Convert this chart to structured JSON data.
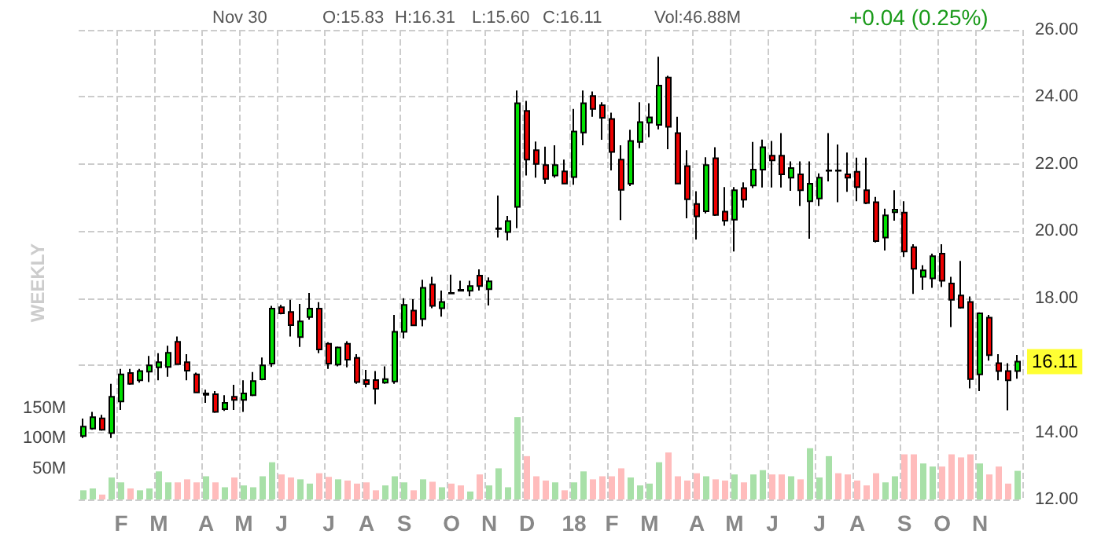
{
  "chart_data": {
    "type": "candlestick",
    "annotations": [
      "Nov 30",
      "O:15.83",
      "H:16.31",
      "L:15.60",
      "C:16.11",
      "Vol:46.88M",
      "+0.04 (0.25%)",
      "WEEKLY",
      {
        "text": "16.11",
        "y": 16.11
      }
    ],
    "categories": [
      null,
      null,
      null,
      null,
      "F",
      null,
      null,
      null,
      "M",
      null,
      null,
      null,
      null,
      "A",
      null,
      null,
      null,
      "M",
      null,
      null,
      null,
      "J",
      null,
      null,
      null,
      null,
      "J",
      null,
      null,
      null,
      "A",
      null,
      null,
      null,
      "S",
      null,
      null,
      null,
      null,
      "O",
      null,
      null,
      null,
      "N",
      null,
      null,
      null,
      "D",
      null,
      null,
      null,
      null,
      "18",
      null,
      null,
      null,
      "F",
      null,
      null,
      null,
      "M",
      null,
      null,
      null,
      null,
      "A",
      null,
      null,
      null,
      "M",
      null,
      null,
      null,
      "J",
      null,
      null,
      null,
      null,
      "J",
      null,
      null,
      null,
      "A",
      null,
      null,
      null,
      null,
      "S",
      null,
      null,
      null,
      "O",
      null,
      null,
      null,
      "N",
      null,
      null,
      null,
      null
    ],
    "ylim": [
      12,
      26
    ],
    "yticks": [
      {
        "value": 12,
        "label": "12.00"
      },
      {
        "value": 14,
        "label": "14.00"
      },
      {
        "value": 16,
        "label": null
      },
      {
        "value": 18,
        "label": "18.00"
      },
      {
        "value": 20,
        "label": "20.00"
      },
      {
        "value": 22,
        "label": "22.00"
      },
      {
        "value": 24,
        "label": "24.00"
      },
      {
        "value": 26,
        "label": "26.00"
      }
    ],
    "y2lim": [
      0,
      770
    ],
    "y2ticks": [
      {
        "value": 50,
        "label": "50M"
      },
      {
        "value": 100,
        "label": "100M"
      },
      {
        "value": 150,
        "label": "150M"
      }
    ],
    "grid": true,
    "series": [
      {
        "ohlc": [
          [
            13.89,
            14.41,
            13.83,
            14.17
          ],
          [
            14.11,
            14.61,
            14.08,
            14.45
          ],
          [
            14.42,
            14.52,
            14.05,
            14.08
          ],
          [
            13.98,
            15.45,
            13.83,
            15.06
          ],
          [
            14.92,
            15.89,
            14.67,
            15.73
          ],
          [
            15.77,
            15.89,
            15.42,
            15.45
          ],
          [
            15.55,
            15.89,
            15.48,
            15.83
          ],
          [
            15.81,
            16.28,
            15.5,
            16.0
          ],
          [
            15.94,
            16.36,
            15.55,
            16.09
          ],
          [
            15.95,
            16.58,
            15.66,
            16.37
          ],
          [
            16.7,
            16.86,
            16.02,
            16.03
          ],
          [
            16.09,
            16.33,
            15.55,
            15.84
          ],
          [
            15.73,
            15.78,
            15.19,
            15.19
          ],
          [
            15.12,
            15.27,
            14.88,
            15.16
          ],
          [
            15.14,
            15.23,
            14.58,
            14.61
          ],
          [
            14.69,
            15.11,
            14.64,
            14.88
          ],
          [
            15.06,
            15.42,
            14.67,
            14.97
          ],
          [
            14.97,
            15.55,
            14.61,
            15.16
          ],
          [
            15.11,
            15.8,
            15.08,
            15.53
          ],
          [
            15.58,
            16.23,
            15.55,
            16.0
          ],
          [
            16.05,
            17.77,
            15.95,
            17.69
          ],
          [
            17.73,
            17.8,
            17.52,
            17.55
          ],
          [
            17.59,
            17.95,
            16.86,
            17.2
          ],
          [
            16.84,
            17.83,
            16.55,
            17.31
          ],
          [
            17.44,
            18.16,
            17.36,
            17.69
          ],
          [
            17.69,
            17.88,
            16.36,
            16.47
          ],
          [
            16.64,
            16.69,
            15.89,
            16.05
          ],
          [
            16.02,
            16.56,
            15.97,
            16.53
          ],
          [
            16.64,
            16.72,
            15.94,
            16.17
          ],
          [
            16.22,
            16.33,
            15.45,
            15.5
          ],
          [
            15.56,
            15.86,
            15.34,
            15.44
          ],
          [
            15.56,
            15.83,
            14.84,
            15.3
          ],
          [
            15.48,
            15.97,
            15.45,
            15.59
          ],
          [
            15.52,
            17.5,
            15.45,
            17.0
          ],
          [
            17.0,
            18.0,
            16.8,
            17.8
          ],
          [
            17.63,
            17.97,
            17.19,
            17.19
          ],
          [
            17.38,
            18.55,
            17.16,
            18.31
          ],
          [
            18.41,
            18.64,
            17.7,
            17.77
          ],
          [
            17.7,
            18.23,
            17.45,
            17.89
          ],
          [
            18.16,
            18.7,
            18.12,
            18.14
          ],
          [
            18.25,
            18.52,
            18.2,
            18.22
          ],
          [
            18.22,
            18.52,
            18.06,
            18.36
          ],
          [
            18.67,
            18.86,
            18.23,
            18.36
          ],
          [
            18.27,
            18.62,
            17.78,
            18.5
          ],
          [
            20.06,
            21.06,
            19.81,
            20.08
          ],
          [
            19.97,
            20.45,
            19.72,
            20.3
          ],
          [
            20.72,
            24.19,
            20.09,
            23.81
          ],
          [
            23.58,
            23.88,
            21.66,
            22.13
          ],
          [
            22.41,
            22.67,
            21.59,
            22.0
          ],
          [
            21.97,
            22.52,
            21.41,
            21.56
          ],
          [
            21.66,
            22.56,
            21.59,
            21.97
          ],
          [
            21.78,
            22.13,
            21.41,
            21.42
          ],
          [
            21.61,
            23.64,
            21.38,
            22.97
          ],
          [
            22.94,
            24.19,
            22.56,
            23.81
          ],
          [
            24.03,
            24.16,
            23.41,
            23.64
          ],
          [
            23.75,
            23.84,
            22.72,
            23.38
          ],
          [
            23.34,
            23.53,
            21.81,
            22.36
          ],
          [
            22.13,
            22.56,
            20.33,
            21.23
          ],
          [
            21.41,
            23.02,
            21.34,
            22.69
          ],
          [
            22.66,
            23.84,
            22.47,
            23.25
          ],
          [
            23.23,
            23.81,
            22.8,
            23.39
          ],
          [
            23.17,
            25.2,
            23.03,
            24.34
          ],
          [
            24.58,
            24.63,
            22.44,
            23.11
          ],
          [
            22.92,
            23.41,
            21.41,
            21.42
          ],
          [
            21.94,
            22.41,
            20.38,
            20.95
          ],
          [
            20.81,
            21.19,
            19.75,
            20.44
          ],
          [
            20.59,
            22.2,
            20.53,
            21.97
          ],
          [
            22.17,
            22.5,
            20.45,
            20.48
          ],
          [
            20.58,
            21.31,
            20.16,
            20.31
          ],
          [
            20.34,
            21.31,
            19.39,
            21.22
          ],
          [
            21.28,
            21.45,
            20.7,
            20.94
          ],
          [
            21.36,
            22.66,
            21.28,
            21.83
          ],
          [
            21.83,
            22.73,
            21.3,
            22.5
          ],
          [
            22.25,
            22.69,
            21.3,
            22.11
          ],
          [
            22.25,
            22.92,
            21.3,
            21.69
          ],
          [
            21.59,
            22.08,
            21.2,
            21.88
          ],
          [
            21.69,
            22.08,
            20.75,
            21.22
          ],
          [
            20.89,
            22.08,
            19.77,
            21.41
          ],
          [
            20.97,
            21.72,
            20.75,
            21.59
          ],
          [
            21.8,
            22.92,
            21.48,
            21.81
          ],
          [
            21.81,
            22.58,
            20.86,
            21.8
          ],
          [
            21.69,
            22.34,
            21.17,
            21.59
          ],
          [
            21.77,
            22.19,
            20.89,
            21.31
          ],
          [
            21.22,
            22.19,
            20.8,
            20.84
          ],
          [
            20.86,
            21.02,
            19.66,
            19.7
          ],
          [
            19.81,
            20.67,
            19.42,
            20.47
          ],
          [
            20.56,
            21.22,
            20.31,
            20.64
          ],
          [
            20.55,
            20.89,
            19.23,
            19.39
          ],
          [
            19.52,
            19.61,
            18.13,
            18.88
          ],
          [
            18.64,
            18.98,
            18.25,
            18.83
          ],
          [
            18.59,
            19.33,
            18.31,
            19.25
          ],
          [
            19.33,
            19.61,
            18.33,
            18.52
          ],
          [
            18.44,
            18.64,
            17.14,
            17.95
          ],
          [
            18.08,
            19.11,
            17.69,
            17.72
          ],
          [
            17.89,
            18.05,
            15.31,
            15.59
          ],
          [
            15.73,
            17.58,
            15.23,
            17.55
          ],
          [
            17.42,
            17.5,
            16.14,
            16.3
          ],
          [
            16.06,
            16.33,
            15.55,
            15.83
          ],
          [
            15.83,
            16.06,
            14.66,
            15.55
          ],
          [
            15.83,
            16.31,
            15.6,
            16.11
          ]
        ],
        "colors": [
          "#00e000",
          "#00e000",
          "#ee0000",
          "#00e000",
          "#00e000",
          "#ee0000",
          "#00e000",
          "#00e000",
          "#00e000",
          "#00e000",
          "#ee0000",
          "#ee0000",
          "#ee0000",
          "#00e000",
          "#ee0000",
          "#00e000",
          "#ee0000",
          "#00e000",
          "#00e000",
          "#00e000",
          "#00e000",
          "#ee0000",
          "#ee0000",
          "#00e000",
          "#00e000",
          "#ee0000",
          "#ee0000",
          "#00e000",
          "#ee0000",
          "#ee0000",
          "#ee0000",
          "#ee0000",
          "#00e000",
          "#00e000",
          "#00e000",
          "#ee0000",
          "#00e000",
          "#ee0000",
          "#00e000",
          "#ee0000",
          "#ee0000",
          "#00e000",
          "#ee0000",
          "#00e000",
          "#00e000",
          "#00e000",
          "#00e000",
          "#ee0000",
          "#ee0000",
          "#ee0000",
          "#00e000",
          "#ee0000",
          "#00e000",
          "#00e000",
          "#ee0000",
          "#ee0000",
          "#ee0000",
          "#ee0000",
          "#00e000",
          "#00e000",
          "#00e000",
          "#00e000",
          "#ee0000",
          "#ee0000",
          "#ee0000",
          "#ee0000",
          "#00e000",
          "#ee0000",
          "#ee0000",
          "#00e000",
          "#ee0000",
          "#00e000",
          "#00e000",
          "#ee0000",
          "#ee0000",
          "#00e000",
          "#ee0000",
          "#00e000",
          "#00e000",
          "#00e000",
          "#ee0000",
          "#ee0000",
          "#ee0000",
          "#ee0000",
          "#ee0000",
          "#00e000",
          "#00e000",
          "#ee0000",
          "#ee0000",
          "#00e000",
          "#00e000",
          "#ee0000",
          "#ee0000",
          "#ee0000",
          "#ee0000",
          "#00e000",
          "#ee0000",
          "#ee0000",
          "#ee0000",
          "#00e000"
        ]
      },
      {
        "type": "bar",
        "axis": "y2",
        "values": [
          15,
          18,
          8,
          36,
          28,
          18,
          15,
          18,
          46,
          28,
          28,
          33,
          28,
          38,
          28,
          20,
          36,
          23,
          20,
          38,
          61,
          41,
          36,
          33,
          26,
          43,
          37,
          33,
          31,
          26,
          28,
          15,
          23,
          38,
          28,
          15,
          33,
          29,
          20,
          26,
          23,
          13,
          41,
          23,
          51,
          20,
          135,
          71,
          38,
          31,
          28,
          15,
          28,
          46,
          33,
          38,
          38,
          51,
          36,
          23,
          26,
          61,
          77,
          38,
          31,
          43,
          38,
          33,
          31,
          41,
          28,
          41,
          48,
          41,
          41,
          38,
          33,
          84,
          36,
          71,
          43,
          41,
          31,
          23,
          43,
          28,
          38,
          74,
          74,
          59,
          54,
          54,
          74,
          69,
          74,
          59,
          41,
          54,
          26,
          46.88
        ],
        "colors": [
          "#a8e0a8",
          "#a8e0a8",
          "#ffbcbc",
          "#a8e0a8",
          "#a8e0a8",
          "#ffbcbc",
          "#a8e0a8",
          "#a8e0a8",
          "#a8e0a8",
          "#a8e0a8",
          "#ffbcbc",
          "#ffbcbc",
          "#ffbcbc",
          "#a8e0a8",
          "#ffbcbc",
          "#a8e0a8",
          "#ffbcbc",
          "#a8e0a8",
          "#a8e0a8",
          "#a8e0a8",
          "#a8e0a8",
          "#ffbcbc",
          "#ffbcbc",
          "#a8e0a8",
          "#a8e0a8",
          "#ffbcbc",
          "#ffbcbc",
          "#a8e0a8",
          "#ffbcbc",
          "#ffbcbc",
          "#ffbcbc",
          "#ffbcbc",
          "#a8e0a8",
          "#a8e0a8",
          "#a8e0a8",
          "#ffbcbc",
          "#a8e0a8",
          "#ffbcbc",
          "#a8e0a8",
          "#ffbcbc",
          "#ffbcbc",
          "#a8e0a8",
          "#ffbcbc",
          "#a8e0a8",
          "#a8e0a8",
          "#a8e0a8",
          "#a8e0a8",
          "#ffbcbc",
          "#ffbcbc",
          "#ffbcbc",
          "#a8e0a8",
          "#ffbcbc",
          "#a8e0a8",
          "#a8e0a8",
          "#ffbcbc",
          "#ffbcbc",
          "#ffbcbc",
          "#ffbcbc",
          "#a8e0a8",
          "#a8e0a8",
          "#a8e0a8",
          "#a8e0a8",
          "#ffbcbc",
          "#ffbcbc",
          "#ffbcbc",
          "#ffbcbc",
          "#a8e0a8",
          "#ffbcbc",
          "#ffbcbc",
          "#a8e0a8",
          "#ffbcbc",
          "#a8e0a8",
          "#a8e0a8",
          "#ffbcbc",
          "#ffbcbc",
          "#a8e0a8",
          "#ffbcbc",
          "#a8e0a8",
          "#a8e0a8",
          "#a8e0a8",
          "#ffbcbc",
          "#ffbcbc",
          "#ffbcbc",
          "#ffbcbc",
          "#ffbcbc",
          "#a8e0a8",
          "#a8e0a8",
          "#ffbcbc",
          "#ffbcbc",
          "#a8e0a8",
          "#a8e0a8",
          "#ffbcbc",
          "#ffbcbc",
          "#ffbcbc",
          "#ffbcbc",
          "#a8e0a8",
          "#ffbcbc",
          "#ffbcbc",
          "#ffbcbc",
          "#a8e0a8"
        ]
      }
    ]
  }
}
